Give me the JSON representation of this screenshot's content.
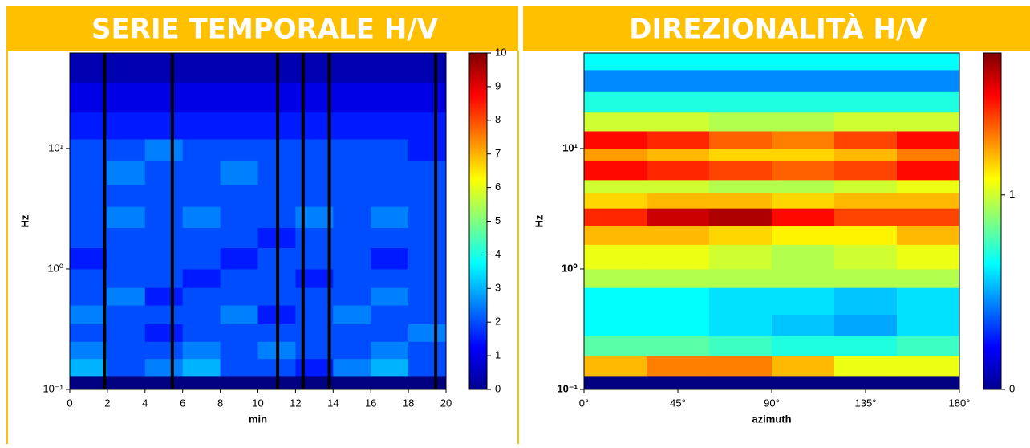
{
  "chart_data": [
    {
      "type": "heatmap",
      "title": "SERIE TEMPORALE H/V",
      "xlabel": "min",
      "ylabel": "Hz",
      "x": [
        0,
        2,
        4,
        6,
        8,
        10,
        12,
        14,
        16,
        18,
        20
      ],
      "y": [
        0.1,
        0.13,
        0.18,
        0.25,
        0.35,
        0.5,
        0.7,
        1,
        1.5,
        2.2,
        3.3,
        5,
        8,
        12,
        20,
        35,
        62
      ],
      "z": [
        [
          0,
          0,
          0,
          0,
          0,
          0,
          0,
          0,
          0,
          0
        ],
        [
          3,
          2,
          2.5,
          3,
          2,
          2,
          1.5,
          2.5,
          3,
          2
        ],
        [
          2.5,
          2,
          2,
          2.5,
          2,
          2.5,
          2,
          2,
          2.5,
          2
        ],
        [
          2,
          2,
          1.5,
          2,
          2,
          2,
          2,
          2,
          2,
          2.5
        ],
        [
          2.5,
          2,
          2,
          2,
          2.5,
          1.5,
          2,
          2.5,
          2,
          2
        ],
        [
          2,
          2.5,
          1.5,
          2,
          2,
          2,
          2,
          2,
          2.5,
          2
        ],
        [
          2,
          2,
          2,
          1.5,
          2,
          2,
          1.5,
          2,
          2,
          2
        ],
        [
          1.5,
          2,
          2,
          2,
          1.5,
          2,
          2,
          2,
          1.5,
          2
        ],
        [
          2,
          2,
          2,
          2,
          2,
          1.5,
          2,
          2,
          2,
          2
        ],
        [
          2,
          2.5,
          2,
          2.5,
          2,
          2,
          2.5,
          2,
          2.5,
          2
        ],
        [
          2,
          2,
          2,
          2,
          2,
          2,
          2,
          2,
          2,
          2
        ],
        [
          2,
          2.5,
          2,
          2,
          2.5,
          2,
          2,
          2,
          2,
          2
        ],
        [
          2,
          2,
          2.5,
          2,
          2,
          2,
          2,
          2,
          2,
          1.5
        ],
        [
          1.5,
          1.5,
          1.5,
          1.5,
          1.5,
          1.5,
          1.5,
          1.5,
          1.5,
          1.5
        ],
        [
          1,
          1,
          1,
          1,
          1,
          1,
          1,
          1,
          1,
          1
        ],
        [
          0.5,
          0.5,
          0.5,
          0.5,
          0.5,
          0.5,
          0.5,
          0.5,
          0.5,
          0.5
        ]
      ],
      "gaps": [
        1.85,
        5.45,
        11.05,
        12.4,
        13.8,
        19.45
      ],
      "xlim": [
        0,
        20
      ],
      "xticks": [
        0,
        2,
        4,
        6,
        8,
        10,
        12,
        14,
        16,
        18,
        20
      ],
      "ylim": [
        0.1,
        62
      ],
      "log_y": true,
      "yticks": [
        {
          "value": 0.1,
          "label": "10⁻¹"
        },
        {
          "value": 1,
          "label": "10⁰"
        },
        {
          "value": 10,
          "label": "10¹"
        }
      ],
      "zlim": [
        0,
        10
      ],
      "zticks": [
        0,
        1,
        2,
        3,
        4,
        5,
        6,
        7,
        8,
        9,
        10
      ],
      "colormap": "jet"
    },
    {
      "type": "heatmap",
      "title": "DIREZIONALITÀ H/V",
      "xlabel": "azimuth",
      "ylabel": "Hz",
      "x": [
        0,
        30,
        60,
        90,
        120,
        150,
        180
      ],
      "y": [
        0.1,
        0.13,
        0.19,
        0.28,
        0.42,
        0.7,
        1,
        1.6,
        2.3,
        3.2,
        4.3,
        5.5,
        8,
        10,
        14,
        20,
        30,
        45,
        62
      ],
      "z": [
        [
          0,
          0,
          0,
          0,
          0,
          0
        ],
        [
          1.2,
          1.3,
          1.3,
          1.2,
          1.05,
          1.05
        ],
        [
          0.8,
          0.8,
          0.75,
          0.7,
          0.7,
          0.75
        ],
        [
          0.65,
          0.65,
          0.6,
          0.55,
          0.5,
          0.6
        ],
        [
          0.65,
          0.65,
          0.6,
          0.6,
          0.55,
          0.6
        ],
        [
          0.95,
          0.95,
          0.95,
          0.95,
          0.95,
          0.95
        ],
        [
          1.05,
          1.05,
          1,
          0.95,
          1,
          1.05
        ],
        [
          1.2,
          1.2,
          1.15,
          1.1,
          1.1,
          1.2
        ],
        [
          1.45,
          1.6,
          1.65,
          1.5,
          1.4,
          1.4
        ],
        [
          1.15,
          1.2,
          1.2,
          1.15,
          1.2,
          1.2
        ],
        [
          1,
          1,
          0.95,
          0.95,
          1,
          1.05
        ],
        [
          1.5,
          1.45,
          1.4,
          1.35,
          1.4,
          1.5
        ],
        [
          1.25,
          1.2,
          1.15,
          1.15,
          1.2,
          1.3
        ],
        [
          1.5,
          1.45,
          1.35,
          1.3,
          1.4,
          1.5
        ],
        [
          1,
          1,
          0.95,
          0.95,
          1,
          1
        ],
        [
          0.7,
          0.7,
          0.7,
          0.7,
          0.7,
          0.7
        ],
        [
          0.45,
          0.45,
          0.45,
          0.45,
          0.45,
          0.45
        ],
        [
          0.65,
          0.65,
          0.65,
          0.65,
          0.65,
          0.65
        ]
      ],
      "xlim": [
        0,
        180
      ],
      "xticks": [
        {
          "value": 0,
          "label": "0°"
        },
        {
          "value": 45,
          "label": "45°"
        },
        {
          "value": 90,
          "label": "90°"
        },
        {
          "value": 135,
          "label": "135°"
        },
        {
          "value": 180,
          "label": "180°"
        }
      ],
      "ylim": [
        0.1,
        62
      ],
      "log_y": true,
      "yticks": [
        {
          "value": 0.1,
          "label": "10⁻¹"
        },
        {
          "value": 1,
          "label": "10⁰"
        },
        {
          "value": 10,
          "label": "10¹"
        }
      ],
      "zlim": [
        0,
        1.73
      ],
      "zticks": [
        0,
        1
      ],
      "colormap": "jet"
    }
  ]
}
